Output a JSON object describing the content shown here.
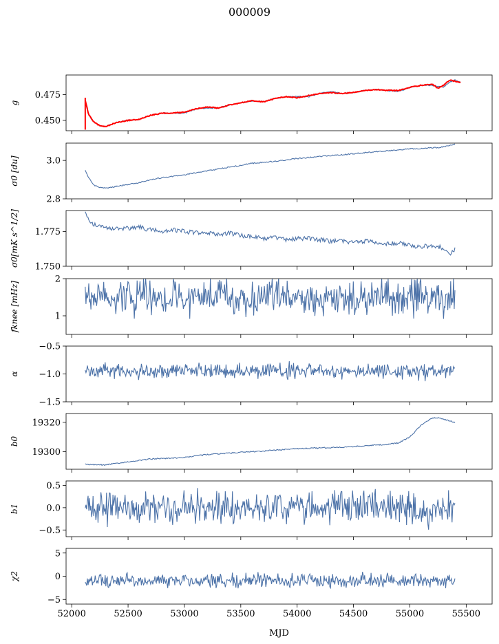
{
  "title": "000009",
  "xlabel": "MJD",
  "x_ticks": [
    52000,
    52500,
    53000,
    53500,
    54000,
    54500,
    55000,
    55500
  ],
  "colors": {
    "series": "#4c72a8",
    "highlight": "#ff0000",
    "axes": "#000000"
  },
  "chart_data": [
    {
      "type": "line",
      "ylabel": "g",
      "xlim": [
        51950,
        55730
      ],
      "ylim": [
        0.44,
        0.494
      ],
      "yticks": [
        0.45,
        0.475
      ],
      "ytick_labels": [
        "0.450",
        "0.475"
      ],
      "series": [
        {
          "color": "#4c72a8",
          "x": [
            52120,
            52150,
            52200,
            52250,
            52300,
            52350,
            52400,
            52500,
            52600,
            52700,
            52800,
            52900,
            53000,
            53100,
            53200,
            53300,
            53400,
            53500,
            53600,
            53700,
            53800,
            53900,
            54000,
            54100,
            54200,
            54300,
            54400,
            54500,
            54600,
            54700,
            54800,
            54900,
            55000,
            55100,
            55200,
            55300,
            55350,
            55400,
            55450
          ],
          "y": [
            0.468,
            0.455,
            0.448,
            0.445,
            0.444,
            0.446,
            0.448,
            0.45,
            0.451,
            0.455,
            0.457,
            0.457,
            0.457,
            0.461,
            0.462,
            0.462,
            0.465,
            0.467,
            0.469,
            0.468,
            0.471,
            0.473,
            0.473,
            0.473,
            0.476,
            0.478,
            0.476,
            0.477,
            0.479,
            0.48,
            0.479,
            0.478,
            0.482,
            0.484,
            0.484,
            0.482,
            0.487,
            0.489,
            0.487
          ]
        },
        {
          "color": "#ff0000",
          "x": [
            52120,
            52150,
            52200,
            52250,
            52300,
            52350,
            52400,
            52500,
            52600,
            52700,
            52800,
            52900,
            53000,
            53100,
            53200,
            53300,
            53400,
            53500,
            53600,
            53700,
            53800,
            53900,
            54000,
            54100,
            54200,
            54300,
            54400,
            54500,
            54600,
            54700,
            54800,
            54900,
            55000,
            55100,
            55200,
            55250,
            55300,
            55350,
            55400,
            55450
          ],
          "y": [
            0.47,
            0.456,
            0.448,
            0.445,
            0.444,
            0.446,
            0.448,
            0.45,
            0.451,
            0.455,
            0.457,
            0.457,
            0.458,
            0.461,
            0.463,
            0.462,
            0.465,
            0.467,
            0.469,
            0.468,
            0.471,
            0.473,
            0.472,
            0.474,
            0.476,
            0.477,
            0.476,
            0.477,
            0.479,
            0.48,
            0.479,
            0.479,
            0.482,
            0.484,
            0.485,
            0.481,
            0.484,
            0.489,
            0.488,
            0.487
          ]
        }
      ]
    },
    {
      "type": "line",
      "ylabel": "σ0 [du]",
      "xlim": [
        51950,
        55730
      ],
      "ylim": [
        2.8,
        3.09
      ],
      "yticks": [
        2.8,
        3.0
      ],
      "ytick_labels": [
        "2.8",
        "3.0"
      ],
      "series": [
        {
          "color": "#4c72a8",
          "x": [
            52120,
            52150,
            52200,
            52250,
            52300,
            52400,
            52500,
            52600,
            52700,
            52800,
            53000,
            53200,
            53400,
            53600,
            53800,
            54000,
            54200,
            54400,
            54600,
            54800,
            55000,
            55200,
            55300,
            55400
          ],
          "y": [
            2.95,
            2.91,
            2.87,
            2.86,
            2.855,
            2.865,
            2.875,
            2.885,
            2.9,
            2.91,
            2.925,
            2.945,
            2.965,
            2.985,
            2.995,
            3.01,
            3.02,
            3.03,
            3.04,
            3.05,
            3.06,
            3.065,
            3.07,
            3.085
          ]
        }
      ]
    },
    {
      "type": "line",
      "ylabel": "σ0[mK s^1/2]",
      "xlim": [
        51950,
        55730
      ],
      "ylim": [
        1.75,
        1.79
      ],
      "yticks": [
        1.75,
        1.775
      ],
      "ytick_labels": [
        "1.750",
        "1.775"
      ],
      "series": [
        {
          "color": "#4c72a8",
          "x": [
            52120,
            52150,
            52200,
            52300,
            52400,
            52500,
            52600,
            52700,
            52800,
            52900,
            53000,
            53100,
            53200,
            53300,
            53400,
            53500,
            53600,
            53700,
            53800,
            53900,
            54000,
            54100,
            54200,
            54300,
            54400,
            54500,
            54600,
            54700,
            54800,
            54900,
            55000,
            55100,
            55200,
            55300,
            55350,
            55400
          ],
          "y": [
            1.79,
            1.783,
            1.78,
            1.778,
            1.777,
            1.777,
            1.778,
            1.776,
            1.775,
            1.776,
            1.775,
            1.774,
            1.774,
            1.773,
            1.774,
            1.772,
            1.771,
            1.77,
            1.771,
            1.769,
            1.77,
            1.77,
            1.769,
            1.768,
            1.768,
            1.767,
            1.768,
            1.767,
            1.766,
            1.767,
            1.765,
            1.764,
            1.765,
            1.763,
            1.758,
            1.762
          ]
        }
      ]
    },
    {
      "type": "line",
      "ylabel": "fknee [mHz]",
      "xlim": [
        51950,
        55730
      ],
      "ylim": [
        0.5,
        2.0
      ],
      "yticks": [
        1,
        2
      ],
      "ytick_labels": [
        "1",
        "2"
      ],
      "series": [
        {
          "color": "#4c72a8",
          "x_start": 52120,
          "x_end": 55400,
          "center": 1.5,
          "spread": 0.45
        }
      ]
    },
    {
      "type": "line",
      "ylabel": "α",
      "xlim": [
        51950,
        55730
      ],
      "ylim": [
        -1.5,
        -0.5
      ],
      "yticks": [
        -1.5,
        -1.0,
        -0.5
      ],
      "ytick_labels": [
        "−1.5",
        "−1.0",
        "−0.5"
      ],
      "series": [
        {
          "color": "#4c72a8",
          "x_start": 52120,
          "x_end": 55400,
          "center": -0.95,
          "spread": 0.12
        }
      ]
    },
    {
      "type": "line",
      "ylabel": "b0",
      "xlim": [
        51950,
        55730
      ],
      "ylim": [
        19288,
        19326
      ],
      "yticks": [
        19300,
        19320
      ],
      "ytick_labels": [
        "19300",
        "19320"
      ],
      "series": [
        {
          "color": "#4c72a8",
          "x": [
            52120,
            52200,
            52300,
            52500,
            52700,
            53000,
            53200,
            53400,
            53600,
            53800,
            54000,
            54200,
            54400,
            54600,
            54800,
            54900,
            55000,
            55100,
            55200,
            55250,
            55300,
            55400
          ],
          "y": [
            19291.5,
            19291,
            19291,
            19293,
            19295,
            19296,
            19298,
            19299,
            19300,
            19301,
            19302,
            19302.5,
            19303,
            19304,
            19305,
            19306,
            19310,
            19318,
            19323,
            19323,
            19322,
            19320
          ]
        }
      ]
    },
    {
      "type": "line",
      "ylabel": "b1",
      "xlim": [
        51950,
        55730
      ],
      "ylim": [
        -0.65,
        0.6
      ],
      "yticks": [
        -0.5,
        0.0,
        0.5
      ],
      "ytick_labels": [
        "−0.5",
        "0.0",
        "0.5"
      ],
      "series": [
        {
          "color": "#4c72a8",
          "x_start": 52120,
          "x_end": 55400,
          "center": 0.0,
          "spread": 0.3
        }
      ]
    },
    {
      "type": "line",
      "ylabel": "χ2",
      "xlim": [
        51950,
        55730
      ],
      "ylim": [
        -6,
        6
      ],
      "yticks": [
        -5,
        0,
        5
      ],
      "ytick_labels": [
        "−5",
        "0",
        "5"
      ],
      "series": [
        {
          "color": "#4c72a8",
          "x_start": 52120,
          "x_end": 55400,
          "center": -1.0,
          "spread": 1.3
        }
      ]
    }
  ]
}
